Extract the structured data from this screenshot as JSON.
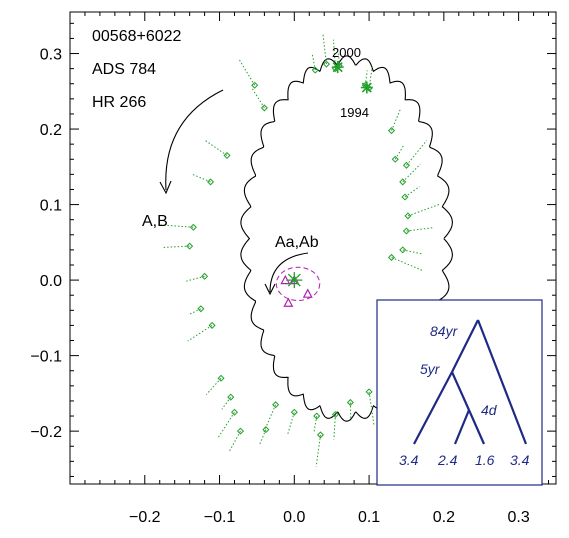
{
  "chart_data": {
    "type": "scatter",
    "title_lines": [
      "00568+6022",
      "ADS 784",
      "HR 266"
    ],
    "xlim": [
      -0.3,
      0.35
    ],
    "ylim": [
      -0.27,
      0.355
    ],
    "xticks": [
      -0.2,
      -0.1,
      0.0,
      0.1,
      0.2,
      0.3
    ],
    "xtick_labels": [
      "−0.2",
      "−0.1",
      "0.0",
      "0.1",
      "0.2",
      "0.3"
    ],
    "yticks": [
      -0.2,
      -0.1,
      0.0,
      0.1,
      0.2,
      0.3
    ],
    "ytick_labels": [
      "−0.2",
      "−0.1",
      "0.0",
      "0.1",
      "0.2",
      "0.3"
    ],
    "grid": false,
    "colors": {
      "orbit": "#000000",
      "observations": "#22a02a",
      "inner_orbit": "#b21fb2",
      "inset": "#1f2a86"
    },
    "outer_orbit": {
      "label": "A,B",
      "center": [
        0.07,
        0.055
      ],
      "semi_axes": [
        0.13,
        0.23
      ],
      "wobble_amplitude": 0.012,
      "wobble_cycles": 17
    },
    "inner_orbit": {
      "label": "Aa,Ab",
      "center": [
        0.005,
        -0.005
      ],
      "semi_axes": [
        0.029,
        0.022
      ],
      "primary": [
        0.0,
        0.0
      ],
      "measures": [
        {
          "x": -0.012,
          "y": 0.0
        },
        {
          "x": 0.0,
          "y": 0.0
        },
        {
          "x": -0.008,
          "y": -0.03
        },
        {
          "x": 0.018,
          "y": -0.018
        }
      ]
    },
    "epochs": [
      {
        "label": "2000",
        "x": 0.058,
        "y": 0.282
      },
      {
        "label": "1994",
        "x": 0.097,
        "y": 0.255
      }
    ],
    "observations": [
      {
        "x": 0.06,
        "y": 0.284
      },
      {
        "x": 0.055,
        "y": 0.28
      },
      {
        "x": 0.1,
        "y": 0.254
      },
      {
        "x": 0.095,
        "y": 0.258
      },
      {
        "x": -0.053,
        "y": 0.258
      },
      {
        "x": -0.04,
        "y": 0.228
      },
      {
        "x": 0.028,
        "y": 0.278
      },
      {
        "x": 0.043,
        "y": 0.286
      },
      {
        "x": 0.13,
        "y": 0.198
      },
      {
        "x": 0.135,
        "y": 0.16
      },
      {
        "x": 0.15,
        "y": 0.152
      },
      {
        "x": 0.145,
        "y": 0.13
      },
      {
        "x": 0.148,
        "y": 0.11
      },
      {
        "x": 0.152,
        "y": 0.085
      },
      {
        "x": 0.15,
        "y": 0.065
      },
      {
        "x": 0.145,
        "y": 0.04
      },
      {
        "x": 0.13,
        "y": 0.03
      },
      {
        "x": -0.09,
        "y": 0.165
      },
      {
        "x": -0.112,
        "y": 0.13
      },
      {
        "x": -0.135,
        "y": 0.07
      },
      {
        "x": -0.14,
        "y": 0.045
      },
      {
        "x": -0.12,
        "y": 0.005
      },
      {
        "x": -0.125,
        "y": -0.038
      },
      {
        "x": -0.11,
        "y": -0.06
      },
      {
        "x": -0.098,
        "y": -0.13
      },
      {
        "x": -0.085,
        "y": -0.155
      },
      {
        "x": -0.08,
        "y": -0.175
      },
      {
        "x": -0.072,
        "y": -0.2
      },
      {
        "x": -0.038,
        "y": -0.198
      },
      {
        "x": -0.025,
        "y": -0.165
      },
      {
        "x": 0.0,
        "y": -0.175
      },
      {
        "x": 0.03,
        "y": -0.18
      },
      {
        "x": 0.035,
        "y": -0.205
      },
      {
        "x": 0.055,
        "y": -0.178
      },
      {
        "x": 0.075,
        "y": -0.162
      },
      {
        "x": 0.1,
        "y": -0.148
      }
    ],
    "inset": {
      "levels": [
        "84yr",
        "5yr",
        "4d"
      ],
      "leaves": [
        "3.4",
        "2.4",
        "1.6",
        "3.4"
      ]
    }
  }
}
